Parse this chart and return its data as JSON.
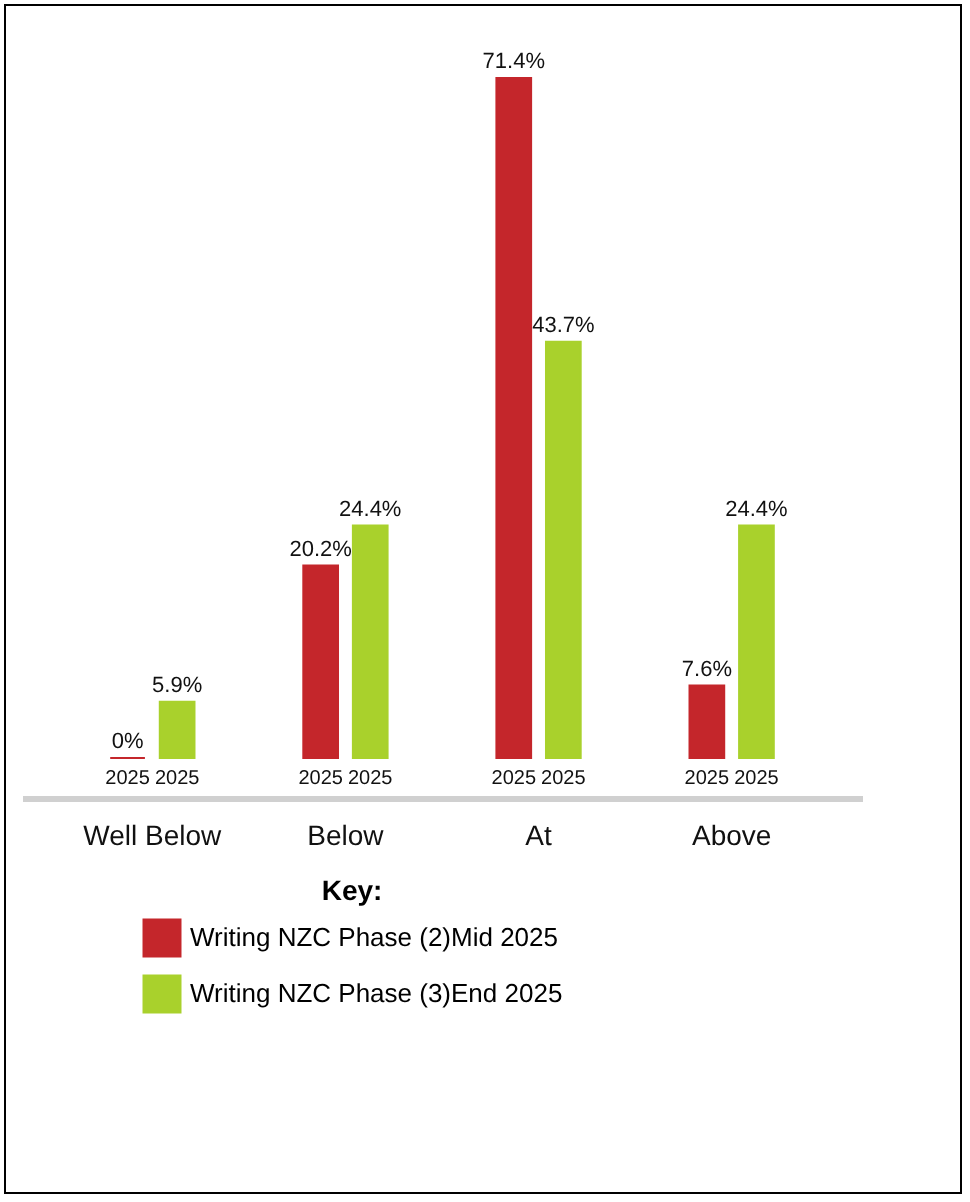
{
  "chart_data": {
    "type": "bar",
    "categories": [
      "Well Below",
      "Below",
      "At",
      "Above"
    ],
    "series": [
      {
        "name": "Writing NZC Phase (2)Mid 2025",
        "color": "#c4262b",
        "values": [
          0,
          20.2,
          71.4,
          7.6
        ],
        "value_labels": [
          "0%",
          "20.2%",
          "71.4%",
          "7.6%"
        ]
      },
      {
        "name": "Writing NZC Phase (3)End 2025",
        "color": "#a9d12c",
        "values": [
          5.9,
          24.4,
          43.7,
          24.4
        ],
        "value_labels": [
          "5.9%",
          "24.4%",
          "43.7%",
          "24.4%"
        ]
      }
    ],
    "legend": "bottom",
    "legend_title": "Key:",
    "grid": false,
    "annotations": [
      {
        "text": "2025",
        "x": "Well Below",
        "y": 0
      },
      {
        "text": "2025",
        "x": "Well Below",
        "y": 0
      },
      {
        "text": "2025",
        "x": "Below",
        "y": 0
      },
      {
        "text": "2025",
        "x": "Below",
        "y": 0
      },
      {
        "text": "2025",
        "x": "At",
        "y": 0
      },
      {
        "text": "2025",
        "x": "At",
        "y": 0
      },
      {
        "text": "2025",
        "x": "Above",
        "y": 0
      },
      {
        "text": "2025",
        "x": "Above",
        "y": 0
      }
    ]
  }
}
